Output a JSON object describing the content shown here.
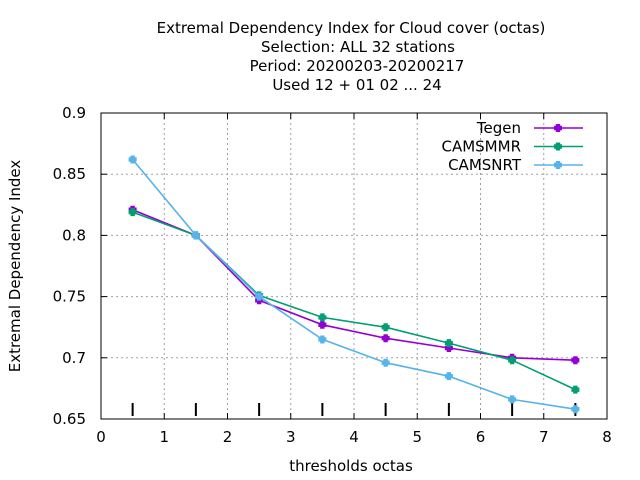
{
  "chart_data": {
    "type": "line",
    "title_lines": [
      "Extremal Dependency Index  for Cloud cover (octas)",
      "Selection: ALL     32 stations",
      "Period: 20200203-20200217",
      "Used  12 + 01 02 ... 24"
    ],
    "xlabel": "thresholds octas",
    "ylabel": "Extremal Dependency Index",
    "xlim": [
      0,
      8
    ],
    "ylim": [
      0.65,
      0.9
    ],
    "xticks": [
      "0",
      "1",
      "2",
      "3",
      "4",
      "5",
      "6",
      "7",
      "8"
    ],
    "yticks": [
      "0.65",
      "0.7",
      "0.75",
      "0.8",
      "0.85",
      "0.9"
    ],
    "grid": true,
    "legend_position": "top-right",
    "threshold_marks": [
      0.5,
      1.5,
      2.5,
      3.5,
      4.5,
      5.5,
      6.5,
      7.5
    ],
    "x": [
      0.5,
      1.5,
      2.5,
      3.5,
      4.5,
      5.5,
      6.5,
      7.5
    ],
    "series": [
      {
        "name": "Tegen",
        "color": "#9400d3",
        "values": [
          0.821,
          0.8,
          0.747,
          0.727,
          0.716,
          0.708,
          0.7,
          0.698
        ]
      },
      {
        "name": "CAMSMMR",
        "color": "#009e73",
        "values": [
          0.819,
          0.8,
          0.751,
          0.733,
          0.725,
          0.712,
          0.698,
          0.674
        ]
      },
      {
        "name": "CAMSNRT",
        "color": "#56b4e9",
        "values": [
          0.862,
          0.8,
          0.75,
          0.715,
          0.696,
          0.685,
          0.666,
          0.658
        ]
      }
    ]
  }
}
